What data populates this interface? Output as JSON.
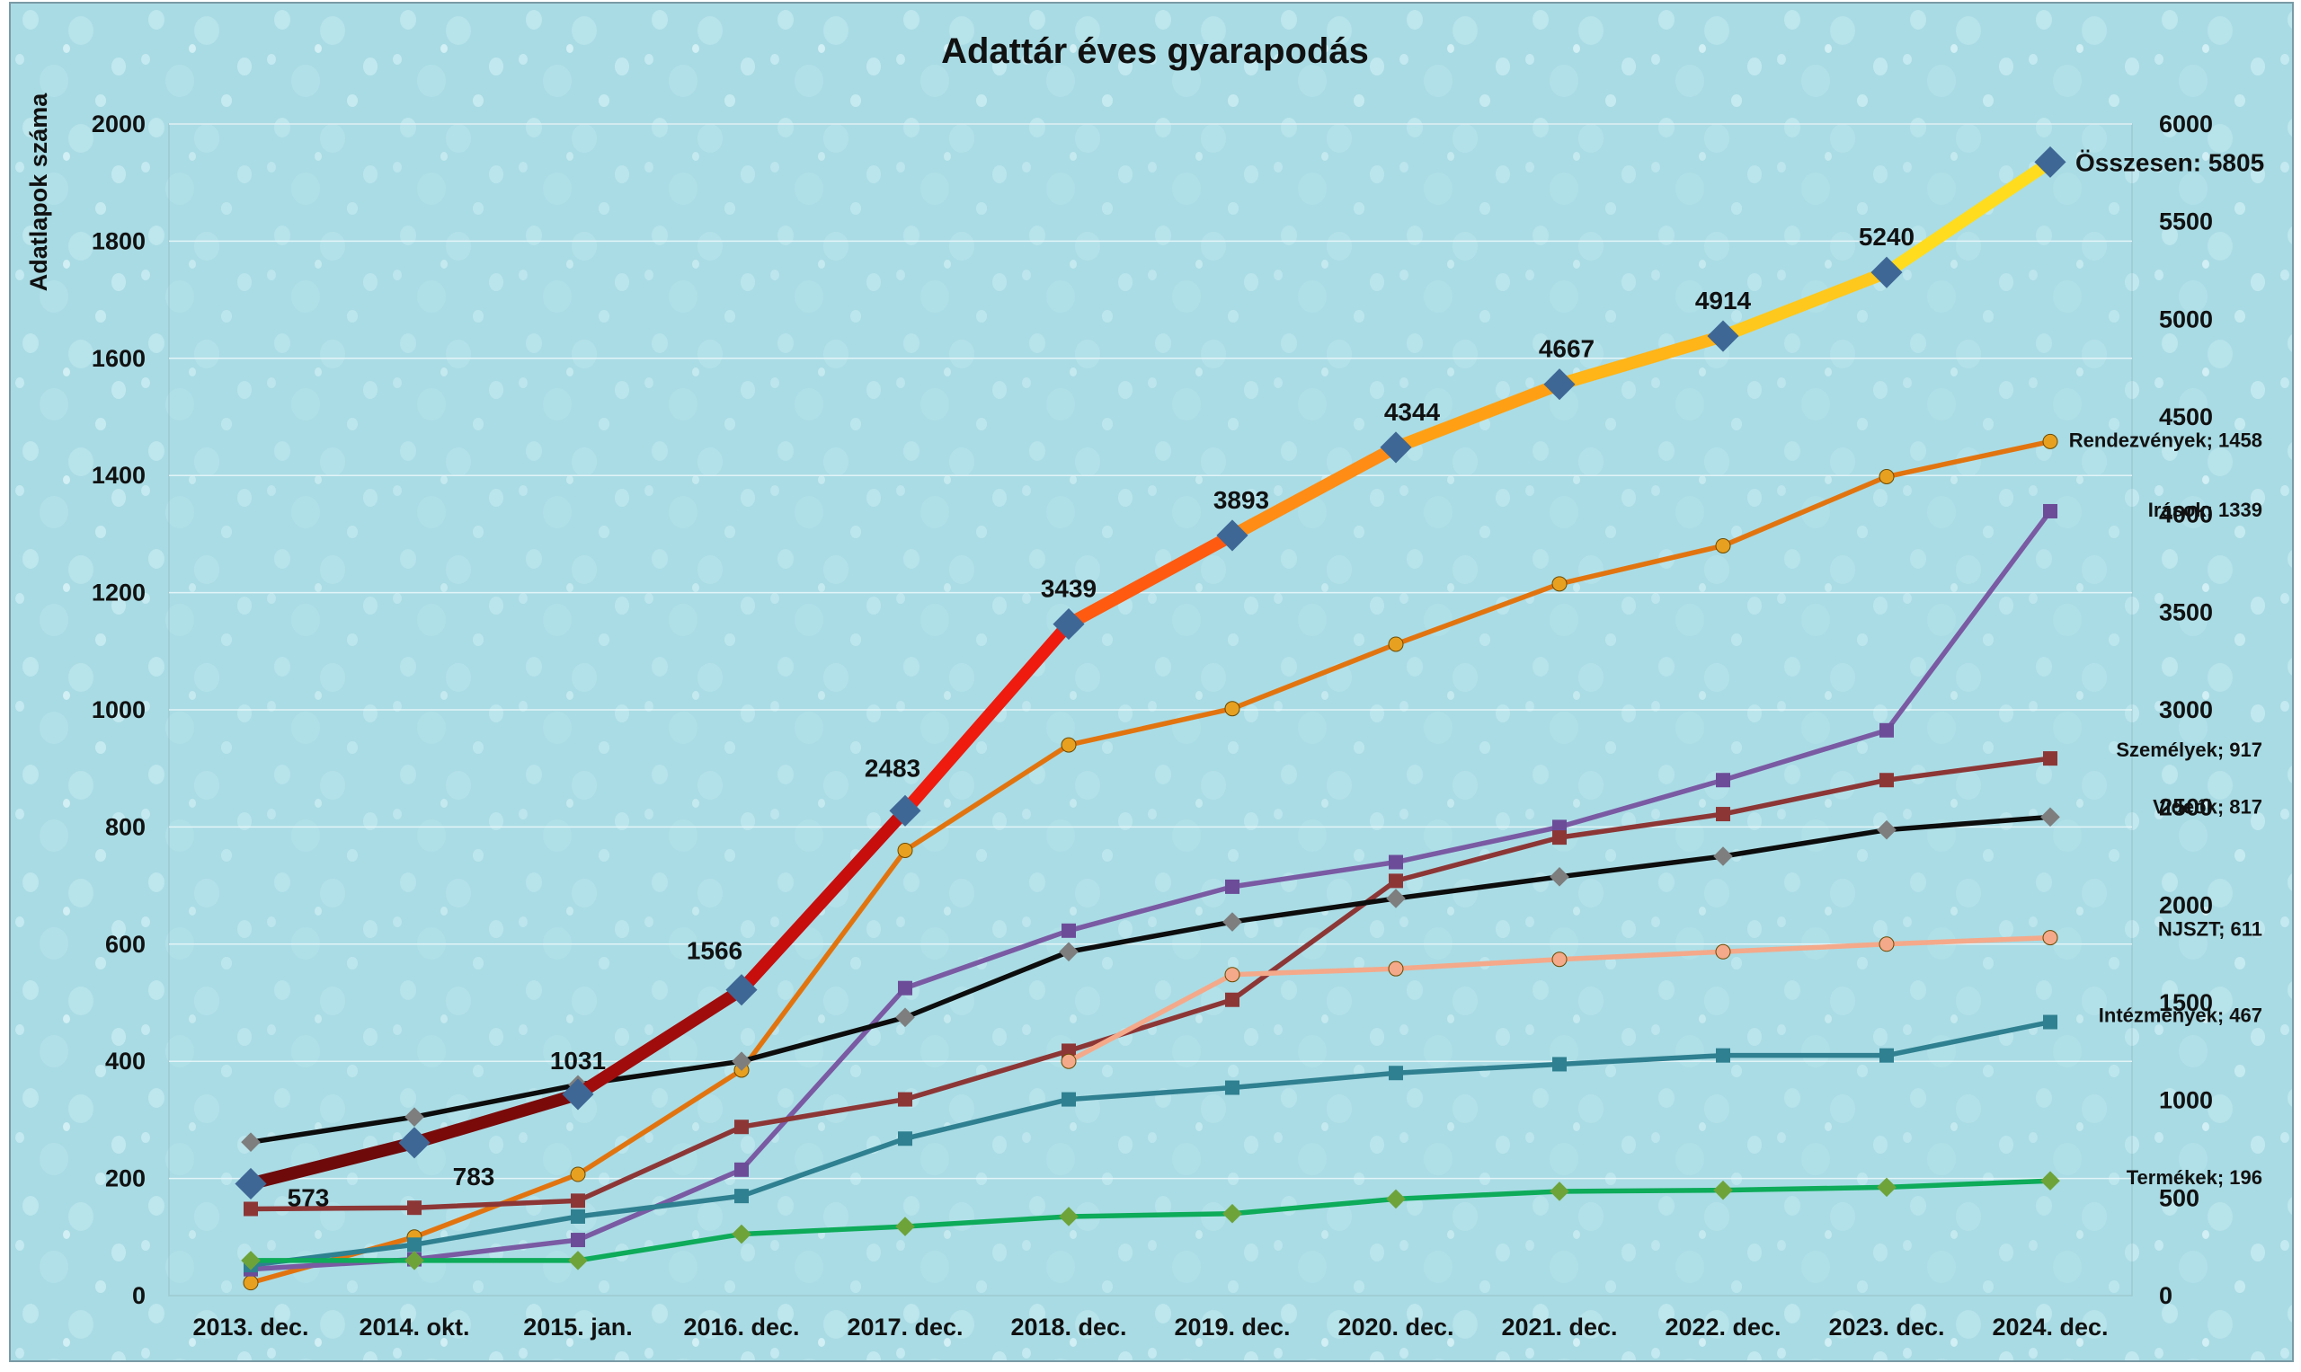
{
  "chart_data": {
    "type": "line",
    "title": "Adattár éves gyarapodás",
    "ylabel": "Adatlapok száma",
    "ylim": [
      0,
      2000
    ],
    "y2lim": [
      0,
      6000
    ],
    "yticks": [
      0,
      200,
      400,
      600,
      800,
      1000,
      1200,
      1400,
      1600,
      1800,
      2000
    ],
    "y2ticks": [
      0,
      500,
      1000,
      1500,
      2000,
      2500,
      3000,
      3500,
      4000,
      4500,
      5000,
      5500,
      6000
    ],
    "grid": true,
    "legend": "none",
    "background_color": "#a9dbe4",
    "categories": [
      "2013. dec.",
      "2014. okt.",
      "2015. jan.",
      "2016. dec.",
      "2017. dec.",
      "2018. dec.",
      "2019. dec.",
      "2020. dec.",
      "2021. dec.",
      "2022. dec.",
      "2023. dec.",
      "2024. dec."
    ],
    "total": {
      "axis": "right",
      "values": [
        573,
        783,
        1031,
        1566,
        2483,
        3439,
        3893,
        4344,
        4667,
        4914,
        5240,
        5805
      ],
      "labels": [
        "573",
        "783",
        "1031",
        "1566",
        "2483",
        "3439",
        "3893",
        "4344",
        "4667",
        "4914",
        "5240",
        "Összesen: 5805"
      ],
      "segment_colors": [
        "#6e0a0a",
        "#7a0a0a",
        "#a00c0c",
        "#c80d0d",
        "#ee1b0e",
        "#ff5a10",
        "#ff8c14",
        "#ffa014",
        "#ffb418",
        "#ffc81c",
        "#ffdc1e"
      ],
      "marker_color": "#3f6796"
    },
    "series": [
      {
        "label": "Rendezvények; 1458",
        "color": "#e2740f",
        "marker_color": "#e8a020",
        "marker": "circle",
        "values": [
          22,
          100,
          207,
          385,
          760,
          940,
          1002,
          1112,
          1215,
          1280,
          1398,
          1458
        ]
      },
      {
        "label": "Irások; 1339",
        "color": "#7a5aa3",
        "marker_color": "#6c4c98",
        "marker": "square",
        "values": [
          45,
          62,
          95,
          215,
          525,
          623,
          698,
          740,
          800,
          880,
          965,
          1339
        ]
      },
      {
        "label": "Személyek; 917",
        "color": "#8d3636",
        "marker_color": "#8d3636",
        "marker": "square",
        "values": [
          148,
          150,
          162,
          288,
          335,
          418,
          505,
          708,
          782,
          822,
          880,
          917
        ]
      },
      {
        "label": "Videók; 817",
        "color": "#0d0d0d",
        "marker_color": "#7e7e7e",
        "marker": "diamond",
        "values": [
          262,
          305,
          360,
          400,
          475,
          587,
          638,
          678,
          715,
          750,
          795,
          817
        ]
      },
      {
        "label": "NJSZT; 611",
        "color": "#f4a98a",
        "marker_color": "#f4a98a",
        "marker": "circle",
        "values": [
          null,
          null,
          null,
          null,
          null,
          400,
          548,
          558,
          574,
          587,
          600,
          611
        ]
      },
      {
        "label": "Intézmények; 467",
        "color": "#2f8090",
        "marker_color": "#2f8090",
        "marker": "square",
        "values": [
          52,
          87,
          135,
          170,
          268,
          335,
          355,
          380,
          395,
          410,
          410,
          467
        ]
      },
      {
        "label": "Termékek; 196",
        "color": "#0dab5a",
        "marker_color": "#6ea33a",
        "marker": "diamond",
        "values": [
          60,
          60,
          60,
          105,
          118,
          135,
          140,
          165,
          178,
          180,
          185,
          196
        ]
      }
    ]
  }
}
